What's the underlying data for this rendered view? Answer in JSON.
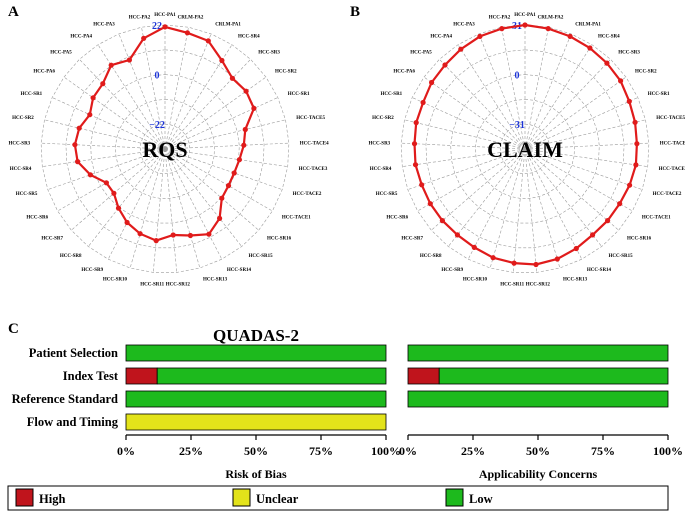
{
  "figure": {
    "panel_a_letter": "A",
    "panel_b_letter": "B",
    "panel_c_letter": "C"
  },
  "colors": {
    "line": "#e01b1b",
    "grid": "#9a9a9a",
    "ring_label": "#1a32d6",
    "high": "#c0141c",
    "unclear": "#e3e31a",
    "low": "#1dba1d"
  },
  "chart_data": [
    {
      "type": "radar",
      "title": "RQS",
      "axes": [
        "HCC-PA1",
        "CRLM-PA2",
        "CRLM-PA1",
        "HCC-SR4",
        "HCC-SR3",
        "HCC-SR2",
        "HCC-SR1",
        "HCC-TACE5",
        "HCC-TACE4",
        "HCC-TACE3",
        "HCC-TACE2",
        "HCC-TACE1",
        "HCC-SR16",
        "HCC-SR15",
        "HCC-SR14",
        "HCC-SR13",
        "HCC-SR12",
        "HCC-SR11",
        "HCC-SR10",
        "HCC-SR9",
        "HCC-SR8",
        "HCC-SR7",
        "HCC-SR6",
        "HCC-SR5",
        "HCC-SR4",
        "HCC-SR3",
        "HCC-SR2",
        "HCC-SR1",
        "HCC-PA6",
        "HCC-PA5",
        "HCC-PA4",
        "HCC-PA3",
        "HCC-PA2"
      ],
      "ring_labels": [
        "22",
        "0",
        "−22"
      ],
      "rlim": [
        -44,
        22
      ],
      "values": [
        21,
        19,
        18,
        12,
        8,
        9,
        8,
        0,
        -2,
        -4,
        -5,
        -5,
        -4,
        3,
        7,
        4,
        2,
        5,
        3,
        0,
        -4,
        -8,
        -8,
        -2,
        3,
        4,
        3,
        0,
        3,
        4,
        9,
        7,
        16
      ]
    },
    {
      "type": "radar",
      "title": "CLAIM",
      "axes": [
        "HCC-PA1",
        "CRLM-PA2",
        "CRLM-PA1",
        "HCC-SR4",
        "HCC-SR3",
        "HCC-SR2",
        "HCC-SR1",
        "HCC-TACE5",
        "HCC-TACE4",
        "HCC-TACE3",
        "HCC-TACE2",
        "HCC-TACE1",
        "HCC-SR16",
        "HCC-SR15",
        "HCC-SR14",
        "HCC-SR13",
        "HCC-SR12",
        "HCC-SR11",
        "HCC-SR10",
        "HCC-SR9",
        "HCC-SR8",
        "HCC-SR7",
        "HCC-SR6",
        "HCC-SR5",
        "HCC-SR4",
        "HCC-SR3",
        "HCC-SR2",
        "HCC-SR1",
        "HCC-PA6",
        "HCC-PA5",
        "HCC-PA4",
        "HCC-PA3",
        "HCC-PA2"
      ],
      "ring_labels": [
        "31",
        "0",
        "−31"
      ],
      "rlim": [
        -62,
        31
      ],
      "values": [
        31,
        30,
        29,
        28,
        27,
        26,
        24,
        23,
        22,
        22,
        21,
        20,
        20,
        20,
        22,
        24,
        25,
        24,
        23,
        21,
        20,
        20,
        20,
        20,
        21,
        21,
        22,
        22,
        24,
        25,
        27,
        29,
        30
      ]
    },
    {
      "type": "stacked-bar",
      "title": "QUADAS-2",
      "categories": [
        "Patient Selection",
        "Index Test",
        "Reference Standard",
        "Flow and Timing"
      ],
      "xlim": [
        0,
        100
      ],
      "xticks": [
        "0%",
        "25%",
        "50%",
        "75%",
        "100%"
      ],
      "panels": [
        {
          "xlabel": "Risk of Bias",
          "series": [
            {
              "name": "High",
              "values": [
                0,
                12,
                0,
                0
              ]
            },
            {
              "name": "Unclear",
              "values": [
                0,
                0,
                0,
                100
              ]
            },
            {
              "name": "Low",
              "values": [
                100,
                88,
                100,
                0
              ]
            }
          ]
        },
        {
          "xlabel": "Applicability Concerns",
          "series": [
            {
              "name": "High",
              "values": [
                0,
                12,
                0
              ]
            },
            {
              "name": "Unclear",
              "values": [
                0,
                0,
                0
              ]
            },
            {
              "name": "Low",
              "values": [
                100,
                88,
                100
              ]
            }
          ]
        }
      ],
      "legend": [
        "High",
        "Unclear",
        "Low"
      ],
      "legend_placement": "bottom"
    }
  ]
}
